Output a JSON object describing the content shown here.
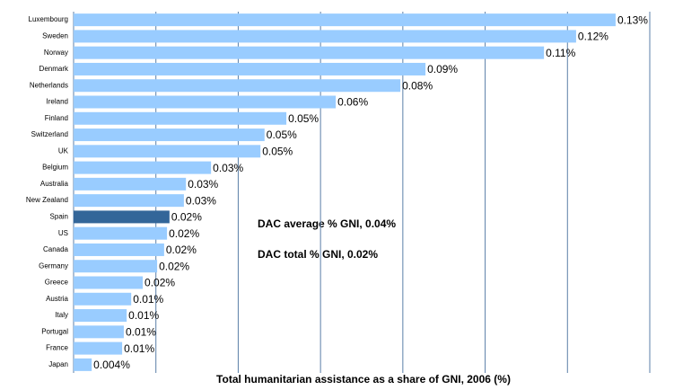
{
  "chart_data": {
    "type": "barh",
    "xlabel": "Total humanitarian assistance as a share of GNI, 2006 (%)",
    "annotations": [
      "DAC average % GNI, 0.04%",
      "DAC total % GNI, 0.02%"
    ],
    "categories": [
      "Luxembourg",
      "Sweden",
      "Norway",
      "Denmark",
      "Netherlands",
      "Ireland",
      "Finland",
      "Switzerland",
      "UK",
      "Belgium",
      "Australia",
      "New Zealand",
      "Spain",
      "US",
      "Canada",
      "Germany",
      "Greece",
      "Austria",
      "Italy",
      "Portugal",
      "France",
      "Japan"
    ],
    "values": [
      0.1317,
      0.1221,
      0.1143,
      0.0855,
      0.0794,
      0.0637,
      0.0517,
      0.0464,
      0.0454,
      0.0334,
      0.0273,
      0.0268,
      0.0233,
      0.0227,
      0.022,
      0.0203,
      0.0168,
      0.014,
      0.0129,
      0.0122,
      0.0118,
      0.0044
    ],
    "value_labels": [
      "0.13%",
      "0.12%",
      "0.11%",
      "0.09%",
      "0.08%",
      "0.06%",
      "0.05%",
      "0.05%",
      "0.05%",
      "0.03%",
      "0.03%",
      "0.03%",
      "0.02%",
      "0.02%",
      "0.02%",
      "0.02%",
      "0.02%",
      "0.01%",
      "0.01%",
      "0.01%",
      "0.01%",
      "0.004%"
    ],
    "colors": [
      "#99ccff",
      "#99ccff",
      "#99ccff",
      "#99ccff",
      "#99ccff",
      "#99ccff",
      "#99ccff",
      "#99ccff",
      "#99ccff",
      "#99ccff",
      "#99ccff",
      "#99ccff",
      "#336699",
      "#99ccff",
      "#99ccff",
      "#99ccff",
      "#99ccff",
      "#99ccff",
      "#99ccff",
      "#99ccff",
      "#99ccff",
      "#99ccff"
    ],
    "xlim": [
      0,
      0.14
    ],
    "xticks": [
      0,
      0.02,
      0.04,
      0.06,
      0.08,
      0.1,
      0.12,
      0.14
    ],
    "grid": true
  }
}
